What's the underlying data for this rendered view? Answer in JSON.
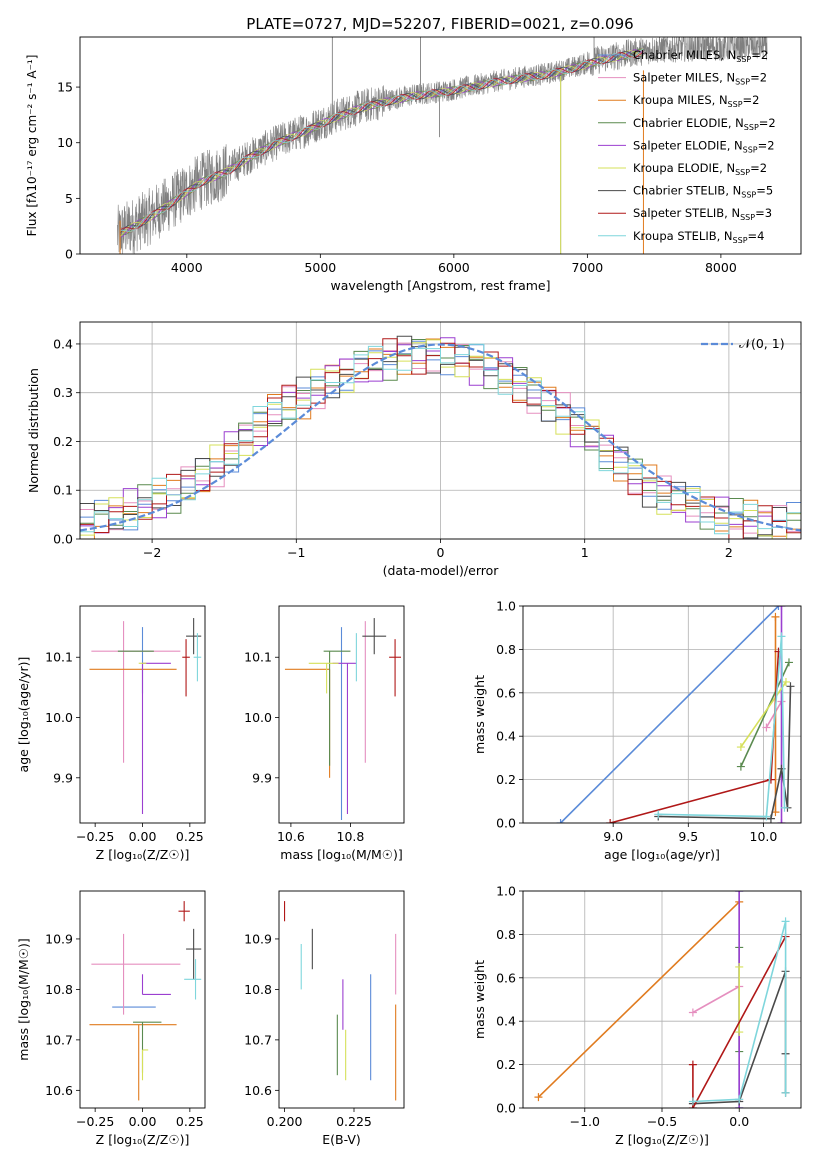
{
  "figure_title": "PLATE=0727, MJD=52207, FIBERID=0021, z=0.096",
  "colors": {
    "Chabrier MILES": "#5b8bd8",
    "Salpeter MILES": "#e58fbf",
    "Kroupa MILES": "#e07b1f",
    "Chabrier ELODIE": "#5a8a4f",
    "Salpeter ELODIE": "#9b3fd0",
    "Kroupa ELODIE": "#d6e05a",
    "Chabrier STELIB": "#4a4a4a",
    "Salpeter STELIB": "#b01818",
    "Kroupa STELIB": "#7fd6dc",
    "data": "#808080",
    "normal": "#5b8bd8"
  },
  "legend_models": [
    {
      "key": "Chabrier MILES",
      "label": "Chabrier MILES, N",
      "sub": "SSP",
      "tail": "=2"
    },
    {
      "key": "Salpeter MILES",
      "label": "Salpeter MILES, N",
      "sub": "SSP",
      "tail": "=2"
    },
    {
      "key": "Kroupa MILES",
      "label": "Kroupa MILES, N",
      "sub": "SSP",
      "tail": "=2"
    },
    {
      "key": "Chabrier ELODIE",
      "label": "Chabrier ELODIE, N",
      "sub": "SSP",
      "tail": "=2"
    },
    {
      "key": "Salpeter ELODIE",
      "label": "Salpeter ELODIE, N",
      "sub": "SSP",
      "tail": "=2"
    },
    {
      "key": "Kroupa ELODIE",
      "label": "Kroupa ELODIE, N",
      "sub": "SSP",
      "tail": "=2"
    },
    {
      "key": "Chabrier STELIB",
      "label": "Chabrier STELIB, N",
      "sub": "SSP",
      "tail": "=5"
    },
    {
      "key": "Salpeter STELIB",
      "label": "Salpeter STELIB, N",
      "sub": "SSP",
      "tail": "=3"
    },
    {
      "key": "Kroupa STELIB",
      "label": "Kroupa STELIB, N",
      "sub": "SSP",
      "tail": "=4"
    }
  ],
  "chart_data": [
    {
      "type": "line",
      "panel": "spectrum",
      "xlabel": "wavelength [Angstrom, rest frame]",
      "ylabel": "Flux [fλ10⁻¹⁷ erg cm⁻² s⁻¹ A⁻¹]",
      "xlim": [
        3200,
        8600
      ],
      "ylim": [
        0,
        19.5
      ],
      "xticks": [
        4000,
        5000,
        6000,
        7000,
        8000
      ],
      "yticks": [
        0,
        5,
        10,
        15
      ],
      "legend_position": "upper right",
      "data_trend": [
        [
          3480,
          1.8
        ],
        [
          3700,
          3.2
        ],
        [
          3900,
          4.8
        ],
        [
          4100,
          6.5
        ],
        [
          4300,
          7.5
        ],
        [
          4500,
          9.0
        ],
        [
          4700,
          10.2
        ],
        [
          4900,
          11.2
        ],
        [
          5100,
          12.3
        ],
        [
          5300,
          13.2
        ],
        [
          5500,
          13.8
        ],
        [
          5700,
          14.3
        ],
        [
          5900,
          14.6
        ],
        [
          6100,
          15.0
        ],
        [
          6300,
          15.5
        ],
        [
          6500,
          15.9
        ],
        [
          6700,
          16.2
        ],
        [
          6900,
          16.8
        ],
        [
          7100,
          17.5
        ],
        [
          7300,
          18.0
        ],
        [
          7500,
          18.4
        ],
        [
          7800,
          18.6
        ],
        [
          8000,
          18.6
        ],
        [
          8300,
          18.7
        ]
      ],
      "sharp_lines": [
        [
          5090,
          19.5
        ],
        [
          5750,
          19.5
        ],
        [
          5893,
          10.5
        ],
        [
          6800,
          0
        ],
        [
          7050,
          19.5
        ]
      ]
    },
    {
      "type": "bar",
      "panel": "residual_histogram",
      "xlabel": "(data-model)/error",
      "ylabel": "Normed distribution",
      "xlim": [
        -2.5,
        2.5
      ],
      "ylim": [
        0,
        0.445
      ],
      "xticks": [
        -2,
        -1,
        0,
        1,
        2
      ],
      "yticks": [
        0.0,
        0.1,
        0.2,
        0.3,
        0.4
      ],
      "grid": true,
      "legend": "𝒩(0, 1)",
      "bin_width": 0.1,
      "approx_histogram": [
        0.03,
        0.04,
        0.05,
        0.06,
        0.07,
        0.08,
        0.09,
        0.11,
        0.13,
        0.15,
        0.18,
        0.21,
        0.23,
        0.26,
        0.28,
        0.29,
        0.31,
        0.33,
        0.34,
        0.35,
        0.36,
        0.37,
        0.38,
        0.38,
        0.38,
        0.38,
        0.37,
        0.36,
        0.35,
        0.34,
        0.32,
        0.3,
        0.28,
        0.26,
        0.23,
        0.21,
        0.18,
        0.16,
        0.13,
        0.11,
        0.09,
        0.08,
        0.07,
        0.06,
        0.05,
        0.04,
        0.04,
        0.03,
        0.03,
        0.03
      ]
    },
    {
      "type": "scatter",
      "panel": "age_vs_Z",
      "xlabel": "Z [log₁₀(Z/Z☉)]",
      "ylabel": "age  [log₁₀(age/yr)]",
      "xlim": [
        -0.33,
        0.33
      ],
      "ylim": [
        9.825,
        10.185
      ],
      "xticks": [
        -0.25,
        0.0,
        0.25
      ],
      "yticks": [
        9.9,
        10.0,
        10.1
      ],
      "points": [
        {
          "key": "Chabrier MILES",
          "x": 0.0,
          "y": 10.1,
          "xerr": [
            0.0,
            0.0
          ],
          "yerr": [
            0.06,
            0.05
          ]
        },
        {
          "key": "Salpeter MILES",
          "x": -0.1,
          "y": 10.11,
          "xerr": [
            0.17,
            0.3
          ],
          "yerr": [
            0.185,
            0.05
          ]
        },
        {
          "key": "Kroupa MILES",
          "x": -0.02,
          "y": 10.08,
          "xerr": [
            0.26,
            0.2
          ],
          "yerr": [
            0.0,
            0.0
          ]
        },
        {
          "key": "Chabrier ELODIE",
          "x": 0.0,
          "y": 10.11,
          "xerr": [
            0.13,
            0.06
          ],
          "yerr": [
            0.0,
            0.0
          ]
        },
        {
          "key": "Salpeter ELODIE",
          "x": 0.0,
          "y": 10.09,
          "xerr": [
            0.0,
            0.15
          ],
          "yerr": [
            0.25,
            0.0
          ]
        },
        {
          "key": "Kroupa ELODIE",
          "x": 0.0,
          "y": 10.09,
          "xerr": [
            0.02,
            0.02
          ],
          "yerr": [
            0.0,
            0.0
          ]
        },
        {
          "key": "Chabrier STELIB",
          "x": 0.27,
          "y": 10.135,
          "xerr": [
            0.04,
            0.04
          ],
          "yerr": [
            0.03,
            0.03
          ]
        },
        {
          "key": "Salpeter STELIB",
          "x": 0.23,
          "y": 10.1,
          "xerr": [
            0.02,
            0.02
          ],
          "yerr": [
            0.065,
            0.03
          ]
        },
        {
          "key": "Kroupa STELIB",
          "x": 0.29,
          "y": 10.1,
          "xerr": [
            0.02,
            0.02
          ],
          "yerr": [
            0.04,
            0.04
          ]
        }
      ]
    },
    {
      "type": "scatter",
      "panel": "age_vs_mass",
      "xlabel": "mass [log₁₀(M/M☉)]",
      "ylabel": "",
      "xlim": [
        10.56,
        10.98
      ],
      "ylim": [
        9.825,
        10.185
      ],
      "xticks": [
        10.6,
        10.8
      ],
      "yticks": [
        9.9,
        10.0,
        10.1
      ],
      "points": [
        {
          "key": "Chabrier MILES",
          "x": 10.77,
          "y": 10.1,
          "xerr": [
            0.0,
            0.0
          ],
          "yerr": [
            0.27,
            0.05
          ]
        },
        {
          "key": "Salpeter MILES",
          "x": 10.85,
          "y": 10.11,
          "xerr": [
            0.0,
            0.0
          ],
          "yerr": [
            0.185,
            0.05
          ]
        },
        {
          "key": "Kroupa MILES",
          "x": 10.73,
          "y": 10.08,
          "xerr": [
            0.15,
            0.0
          ],
          "yerr": [
            0.18,
            0.0
          ]
        },
        {
          "key": "Chabrier ELODIE",
          "x": 10.73,
          "y": 10.11,
          "xerr": [
            0.02,
            0.07
          ],
          "yerr": [
            0.19,
            0.0
          ]
        },
        {
          "key": "Salpeter ELODIE",
          "x": 10.79,
          "y": 10.09,
          "xerr": [
            0.05,
            0.03
          ],
          "yerr": [
            0.25,
            0.0
          ]
        },
        {
          "key": "Kroupa ELODIE",
          "x": 10.72,
          "y": 10.09,
          "xerr": [
            0.06,
            0.04
          ],
          "yerr": [
            0.05,
            0.0
          ]
        },
        {
          "key": "Chabrier STELIB",
          "x": 10.88,
          "y": 10.135,
          "xerr": [
            0.04,
            0.04
          ],
          "yerr": [
            0.03,
            0.03
          ]
        },
        {
          "key": "Salpeter STELIB",
          "x": 10.95,
          "y": 10.1,
          "xerr": [
            0.02,
            0.02
          ],
          "yerr": [
            0.065,
            0.03
          ]
        },
        {
          "key": "Kroupa STELIB",
          "x": 10.82,
          "y": 10.1,
          "xerr": [
            0.0,
            0.0
          ],
          "yerr": [
            0.04,
            0.04
          ]
        }
      ]
    },
    {
      "type": "line",
      "panel": "mass_weight_vs_age",
      "xlabel": "age  [log₁₀(age/yr)]",
      "ylabel": "mass weight",
      "xlim": [
        8.4,
        10.25
      ],
      "ylim": [
        0,
        1.0
      ],
      "xticks": [
        9.0,
        9.5,
        10.0
      ],
      "yticks": [
        0.0,
        0.2,
        0.4,
        0.6,
        0.8,
        1.0
      ],
      "grid": true,
      "series": [
        {
          "key": "Chabrier MILES",
          "points": [
            [
              8.65,
              0.0
            ],
            [
              10.1,
              1.0
            ]
          ]
        },
        {
          "key": "Salpeter MILES",
          "points": [
            [
              10.02,
              0.44
            ],
            [
              10.12,
              0.56
            ]
          ]
        },
        {
          "key": "Kroupa MILES",
          "points": [
            [
              10.08,
              0.05
            ],
            [
              10.08,
              0.95
            ]
          ]
        },
        {
          "key": "Chabrier ELODIE",
          "points": [
            [
              9.85,
              0.26
            ],
            [
              10.17,
              0.74
            ]
          ]
        },
        {
          "key": "Salpeter ELODIE",
          "points": [
            [
              10.12,
              0.0
            ],
            [
              10.12,
              1.0
            ]
          ]
        },
        {
          "key": "Kroupa ELODIE",
          "points": [
            [
              9.85,
              0.35
            ],
            [
              10.15,
              0.65
            ]
          ]
        },
        {
          "key": "Chabrier STELIB",
          "points": [
            [
              9.3,
              0.03
            ],
            [
              10.05,
              0.02
            ],
            [
              10.12,
              0.25
            ],
            [
              10.16,
              0.07
            ],
            [
              10.18,
              0.63
            ]
          ]
        },
        {
          "key": "Salpeter STELIB",
          "points": [
            [
              8.98,
              0.0
            ],
            [
              10.05,
              0.2
            ],
            [
              10.1,
              0.79
            ]
          ]
        },
        {
          "key": "Kroupa STELIB",
          "points": [
            [
              9.3,
              0.04
            ],
            [
              10.02,
              0.03
            ],
            [
              10.12,
              0.86
            ],
            [
              10.14,
              0.07
            ]
          ]
        }
      ]
    },
    {
      "type": "scatter",
      "panel": "mass_vs_Z",
      "xlabel": "Z [log₁₀(Z/Z☉)]",
      "ylabel": "mass [log₁₀(M/M☉)]",
      "xlim": [
        -0.33,
        0.33
      ],
      "ylim": [
        10.565,
        10.995
      ],
      "xticks": [
        -0.25,
        0.0,
        0.25
      ],
      "yticks": [
        10.6,
        10.7,
        10.8,
        10.9
      ],
      "points": [
        {
          "key": "Chabrier MILES",
          "x": -0.03,
          "y": 10.765,
          "xerr": [
            0.13,
            0.1
          ],
          "yerr": [
            0.0,
            0.0
          ]
        },
        {
          "key": "Salpeter MILES",
          "x": -0.1,
          "y": 10.85,
          "xerr": [
            0.17,
            0.3
          ],
          "yerr": [
            0.1,
            0.06
          ]
        },
        {
          "key": "Kroupa MILES",
          "x": -0.02,
          "y": 10.73,
          "xerr": [
            0.26,
            0.2
          ],
          "yerr": [
            0.15,
            0.0
          ]
        },
        {
          "key": "Chabrier ELODIE",
          "x": 0.0,
          "y": 10.735,
          "xerr": [
            0.05,
            0.1
          ],
          "yerr": [
            0.1,
            0.0
          ]
        },
        {
          "key": "Salpeter ELODIE",
          "x": 0.0,
          "y": 10.79,
          "xerr": [
            0.0,
            0.15
          ],
          "yerr": [
            0.0,
            0.04
          ]
        },
        {
          "key": "Kroupa ELODIE",
          "x": 0.0,
          "y": 10.68,
          "xerr": [
            0.0,
            0.03
          ],
          "yerr": [
            0.06,
            0.0
          ]
        },
        {
          "key": "Chabrier STELIB",
          "x": 0.27,
          "y": 10.88,
          "xerr": [
            0.04,
            0.04
          ],
          "yerr": [
            0.06,
            0.04
          ]
        },
        {
          "key": "Salpeter STELIB",
          "x": 0.22,
          "y": 10.955,
          "xerr": [
            0.03,
            0.03
          ],
          "yerr": [
            0.02,
            0.02
          ]
        },
        {
          "key": "Kroupa STELIB",
          "x": 0.28,
          "y": 10.82,
          "xerr": [
            0.06,
            0.03
          ],
          "yerr": [
            0.04,
            0.04
          ]
        }
      ]
    },
    {
      "type": "scatter",
      "panel": "mass_vs_ebv",
      "xlabel": "E(B-V)",
      "ylabel": "",
      "xlim": [
        0.198,
        0.243
      ],
      "ylim": [
        10.565,
        10.995
      ],
      "xticks": [
        0.2,
        0.225
      ],
      "yticks": [
        10.6,
        10.7,
        10.8,
        10.9
      ],
      "points": [
        {
          "key": "Chabrier MILES",
          "x": 0.231,
          "y": 10.72,
          "yerr": [
            0.1,
            0.11
          ]
        },
        {
          "key": "Salpeter MILES",
          "x": 0.24,
          "y": 10.85,
          "yerr": [
            0.06,
            0.06
          ]
        },
        {
          "key": "Kroupa MILES",
          "x": 0.24,
          "y": 10.68,
          "yerr": [
            0.1,
            0.09
          ]
        },
        {
          "key": "Chabrier ELODIE",
          "x": 0.219,
          "y": 10.69,
          "yerr": [
            0.06,
            0.06
          ]
        },
        {
          "key": "Salpeter ELODIE",
          "x": 0.221,
          "y": 10.77,
          "yerr": [
            0.05,
            0.05
          ]
        },
        {
          "key": "Kroupa ELODIE",
          "x": 0.222,
          "y": 10.67,
          "yerr": [
            0.05,
            0.05
          ]
        },
        {
          "key": "Chabrier STELIB",
          "x": 0.21,
          "y": 10.88,
          "yerr": [
            0.04,
            0.04
          ]
        },
        {
          "key": "Salpeter STELIB",
          "x": 0.2,
          "y": 10.955,
          "yerr": [
            0.02,
            0.02
          ]
        },
        {
          "key": "Kroupa STELIB",
          "x": 0.206,
          "y": 10.84,
          "yerr": [
            0.04,
            0.05
          ]
        }
      ]
    },
    {
      "type": "line",
      "panel": "mass_weight_vs_Z",
      "xlabel": "Z [log₁₀(Z/Z☉)]",
      "ylabel": "mass weight",
      "xlim": [
        -1.4,
        0.4
      ],
      "ylim": [
        0,
        1.0
      ],
      "xticks": [
        -1.0,
        -0.5,
        0.0
      ],
      "yticks": [
        0.0,
        0.2,
        0.4,
        0.6,
        0.8,
        1.0
      ],
      "grid": true,
      "series": [
        {
          "key": "Chabrier MILES",
          "points": [
            [
              0.0,
              0.0
            ],
            [
              0.0,
              1.0
            ]
          ]
        },
        {
          "key": "Salpeter MILES",
          "points": [
            [
              -0.3,
              0.44
            ],
            [
              0.0,
              0.56
            ]
          ]
        },
        {
          "key": "Kroupa MILES",
          "points": [
            [
              -1.3,
              0.05
            ],
            [
              0.0,
              0.95
            ]
          ]
        },
        {
          "key": "Chabrier ELODIE",
          "points": [
            [
              0.0,
              0.26
            ],
            [
              0.0,
              0.74
            ]
          ]
        },
        {
          "key": "Salpeter ELODIE",
          "points": [
            [
              0.0,
              0.0
            ],
            [
              0.0,
              1.0
            ]
          ]
        },
        {
          "key": "Kroupa ELODIE",
          "points": [
            [
              0.0,
              0.35
            ],
            [
              0.0,
              0.65
            ]
          ]
        },
        {
          "key": "Chabrier STELIB",
          "points": [
            [
              -0.3,
              0.02
            ],
            [
              0.0,
              0.03
            ],
            [
              0.3,
              0.63
            ],
            [
              0.3,
              0.25
            ],
            [
              0.3,
              0.07
            ]
          ]
        },
        {
          "key": "Salpeter STELIB",
          "points": [
            [
              -0.3,
              0.2
            ],
            [
              -0.3,
              0.0
            ],
            [
              0.3,
              0.79
            ]
          ]
        },
        {
          "key": "Kroupa STELIB",
          "points": [
            [
              -0.3,
              0.03
            ],
            [
              0.0,
              0.04
            ],
            [
              0.3,
              0.86
            ],
            [
              0.3,
              0.07
            ]
          ]
        }
      ]
    }
  ]
}
